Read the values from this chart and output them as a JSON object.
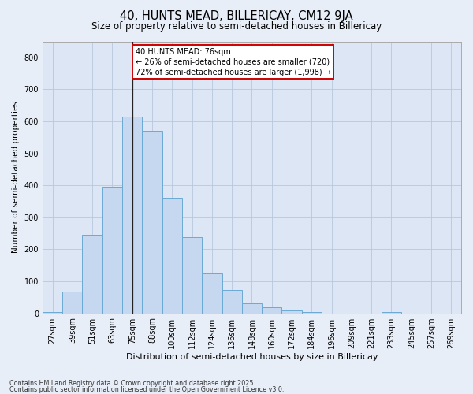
{
  "title": "40, HUNTS MEAD, BILLERICAY, CM12 9JA",
  "subtitle": "Size of property relative to semi-detached houses in Billericay",
  "xlabel": "Distribution of semi-detached houses by size in Billericay",
  "ylabel": "Number of semi-detached properties",
  "bins": [
    "27sqm",
    "39sqm",
    "51sqm",
    "63sqm",
    "75sqm",
    "88sqm",
    "100sqm",
    "112sqm",
    "124sqm",
    "136sqm",
    "148sqm",
    "160sqm",
    "172sqm",
    "184sqm",
    "196sqm",
    "209sqm",
    "221sqm",
    "233sqm",
    "245sqm",
    "257sqm",
    "269sqm"
  ],
  "bar_heights": [
    5,
    68,
    245,
    395,
    615,
    570,
    360,
    237,
    125,
    73,
    32,
    18,
    10,
    5,
    0,
    0,
    0,
    5,
    0,
    0,
    0
  ],
  "bar_color": "#c5d8f0",
  "bar_edge_color": "#6aaad4",
  "vline_bin_index": 4,
  "annotation_text": "40 HUNTS MEAD: 76sqm\n← 26% of semi-detached houses are smaller (720)\n72% of semi-detached houses are larger (1,998) →",
  "annotation_box_color": "#ffffff",
  "annotation_box_edge": "#cc0000",
  "ylim": [
    0,
    850
  ],
  "yticks": [
    0,
    100,
    200,
    300,
    400,
    500,
    600,
    700,
    800
  ],
  "footer1": "Contains HM Land Registry data © Crown copyright and database right 2025.",
  "footer2": "Contains public sector information licensed under the Open Government Licence v3.0.",
  "fig_bg_color": "#e8eef8",
  "plot_bg_color": "#dce6f5"
}
